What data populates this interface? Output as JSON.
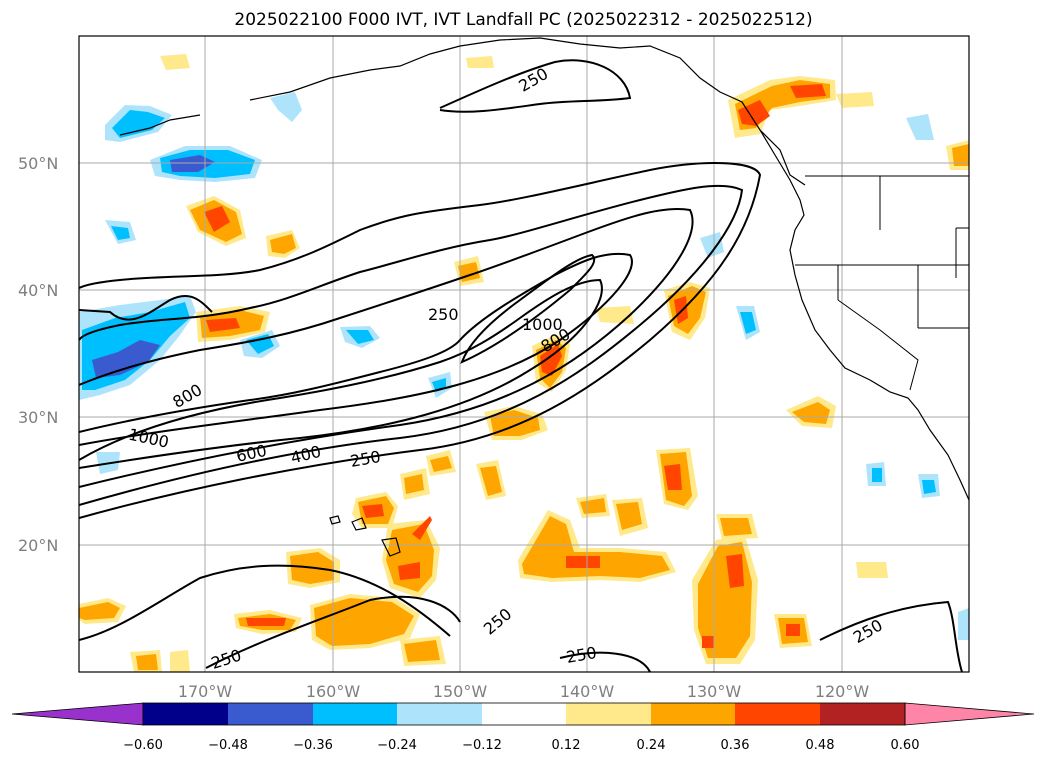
{
  "title": "2025022100 F000 IVT, IVT Landfall PC (2025022312 - 2025022512)",
  "lat_labels": [
    "50°N",
    "40°N",
    "30°N",
    "20°N"
  ],
  "lon_labels": [
    "170°W",
    "160°W",
    "150°W",
    "140°W",
    "130°W",
    "120°W"
  ],
  "colorbar": {
    "colors": [
      "#9932cc",
      "#00008b",
      "#3a5bd0",
      "#00bfff",
      "#aee4fb",
      "#ffffff",
      "#ffe98a",
      "#ffa500",
      "#ff4500",
      "#b22222",
      "#ff85a8"
    ],
    "tick_labels": [
      "−0.60",
      "−0.48",
      "−0.36",
      "−0.24",
      "−0.12",
      "0.12",
      "0.24",
      "0.36",
      "0.48",
      "0.60"
    ]
  },
  "contour_labels": [
    "250",
    "250",
    "800",
    "1000",
    "1000",
    "800",
    "600",
    "400",
    "250",
    "250",
    "250",
    "250",
    "250"
  ]
}
